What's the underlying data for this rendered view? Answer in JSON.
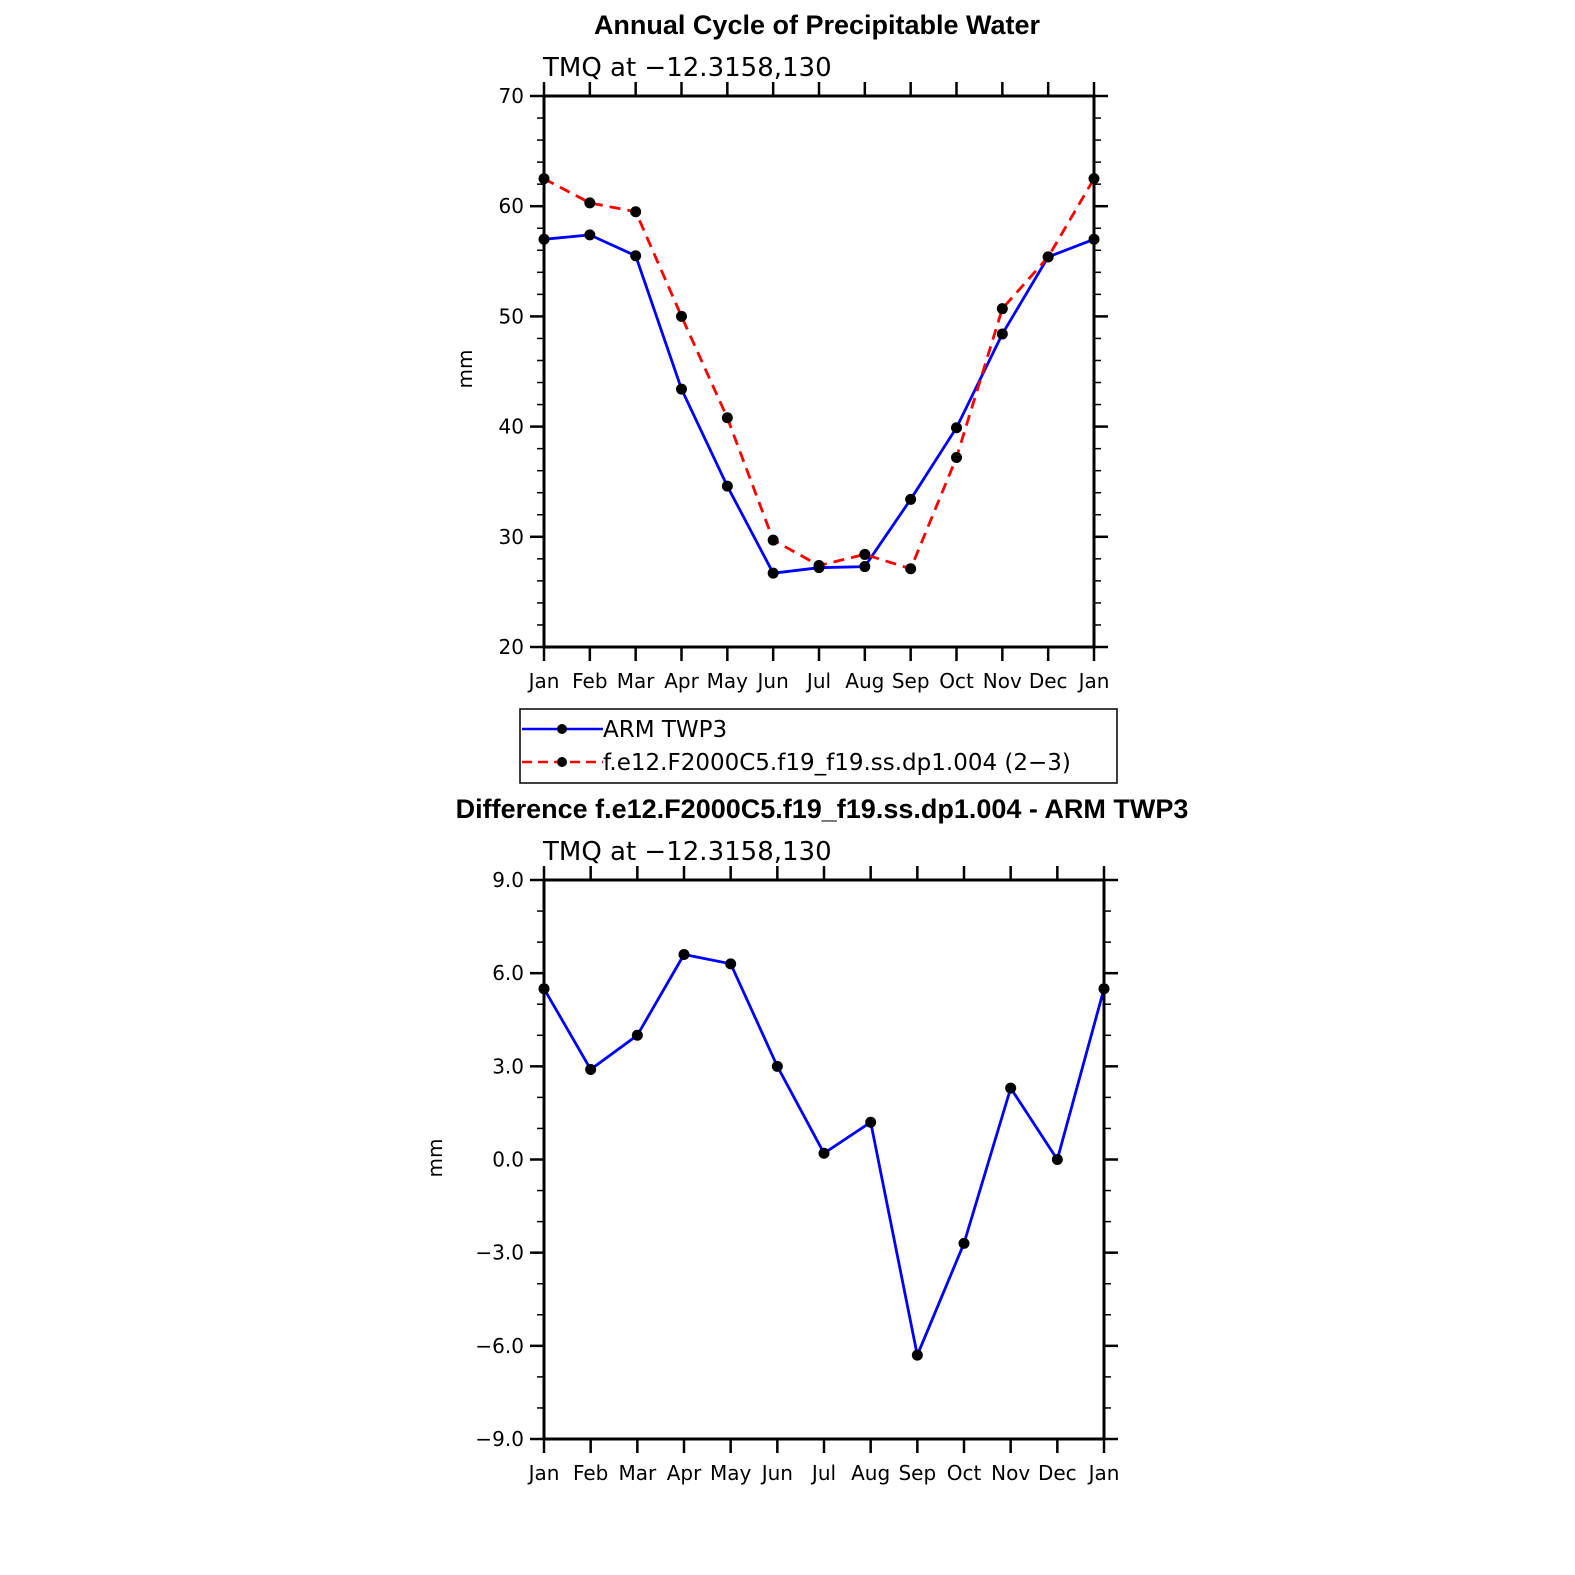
{
  "chart_data": [
    {
      "type": "line",
      "title": "Annual Cycle of Precipitable Water",
      "subtitle": "TMQ at −12.3158,130",
      "ylabel": "mm",
      "xlabel": "",
      "categories": [
        "Jan",
        "Feb",
        "Mar",
        "Apr",
        "May",
        "Jun",
        "Jul",
        "Aug",
        "Sep",
        "Oct",
        "Nov",
        "Dec",
        "Jan"
      ],
      "ylim": [
        20,
        70
      ],
      "y_ticks": [
        "20",
        "30",
        "40",
        "50",
        "60",
        "70"
      ],
      "y_tick_values": [
        20,
        30,
        40,
        50,
        60,
        70
      ],
      "y_minor_step": 2,
      "series": [
        {
          "name": "ARM TWP3",
          "color": "#0000ff",
          "dash": "solid",
          "values": [
            57.0,
            57.4,
            55.5,
            43.4,
            34.6,
            26.7,
            27.2,
            27.3,
            33.4,
            39.9,
            48.4,
            55.4,
            57.0
          ]
        },
        {
          "name": "f.e12.F2000C5.f19_f19.ss.dp1.004 (2−3)",
          "color": "#ff0000",
          "dash": "dashed",
          "values": [
            62.5,
            60.3,
            59.5,
            50.0,
            40.8,
            29.7,
            27.4,
            28.4,
            27.1,
            37.2,
            50.7,
            55.4,
            62.5
          ]
        }
      ],
      "legend_position": "below"
    },
    {
      "type": "line",
      "title": "Difference f.e12.F2000C5.f19_f19.ss.dp1.004 - ARM TWP3",
      "subtitle": "TMQ at −12.3158,130",
      "ylabel": "mm",
      "xlabel": "",
      "categories": [
        "Jan",
        "Feb",
        "Mar",
        "Apr",
        "May",
        "Jun",
        "Jul",
        "Aug",
        "Sep",
        "Oct",
        "Nov",
        "Dec",
        "Jan"
      ],
      "ylim": [
        -9,
        9
      ],
      "y_ticks": [
        "−9.0",
        "−6.0",
        "−3.0",
        "0.0",
        "3.0",
        "6.0",
        "9.0"
      ],
      "y_tick_values": [
        -9,
        -6,
        -3,
        0,
        3,
        6,
        9
      ],
      "y_minor_step": 1,
      "series": [
        {
          "name": "Difference",
          "color": "#0000ff",
          "dash": "solid",
          "values": [
            5.5,
            2.9,
            4.0,
            6.6,
            6.3,
            3.0,
            0.2,
            1.2,
            -6.3,
            -2.7,
            2.3,
            0.0,
            5.5
          ]
        }
      ]
    }
  ]
}
